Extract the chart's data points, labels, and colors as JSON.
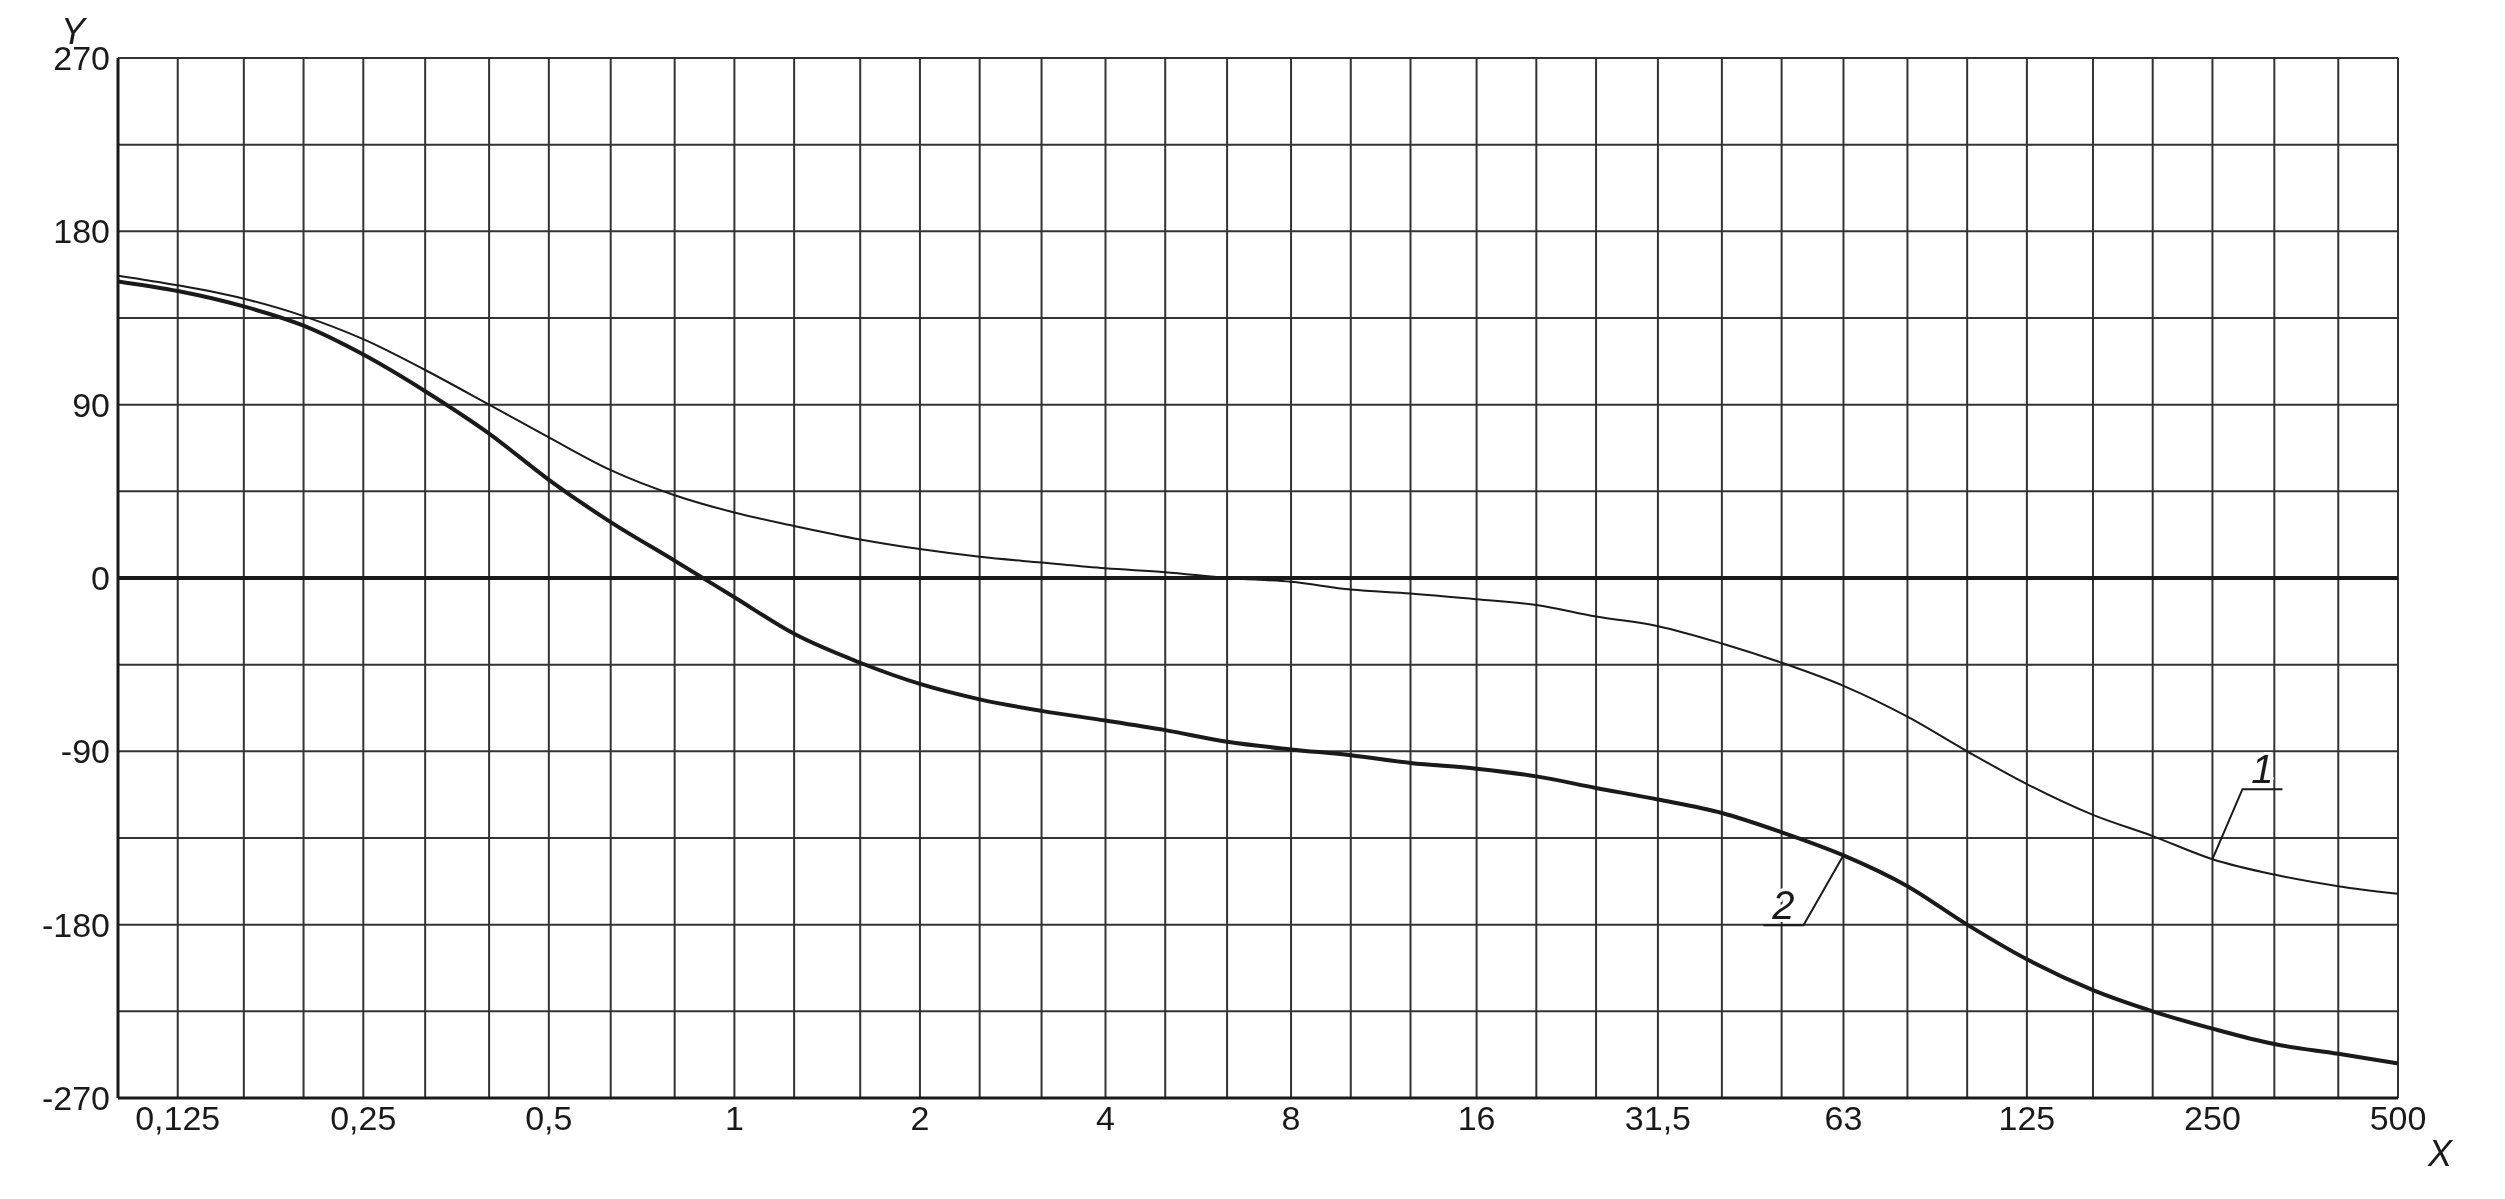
{
  "chart_data": {
    "type": "line",
    "xlabel": "X",
    "ylabel": "Y",
    "x": [
      0.1,
      0.125,
      0.16,
      0.2,
      0.25,
      0.315,
      0.4,
      0.5,
      0.63,
      0.8,
      1,
      1.25,
      1.6,
      2,
      2.5,
      3.15,
      4,
      5,
      6.3,
      8,
      10,
      12.5,
      16,
      20,
      25,
      31.5,
      40,
      50,
      63,
      80,
      100,
      125,
      160,
      200,
      250,
      315,
      400,
      500
    ],
    "series": [
      {
        "name": "1",
        "color": "#1a1a1a",
        "values": [
          157,
          152,
          145,
          136,
          124,
          108,
          90,
          73,
          56,
          43,
          34,
          27,
          20,
          15,
          11,
          8,
          5,
          3,
          0,
          -2,
          -6,
          -8,
          -11,
          -14,
          -20,
          -25,
          -34,
          -44,
          -56,
          -72,
          -90,
          -107,
          -123,
          -134,
          -146,
          -154,
          -160,
          -164
        ]
      },
      {
        "name": "2",
        "color": "#1a1a1a",
        "values": [
          154,
          149,
          141,
          131,
          116,
          97,
          75,
          51,
          29,
          9,
          -10,
          -29,
          -44,
          -55,
          -63,
          -69,
          -74,
          -79,
          -85,
          -89,
          -92,
          -96,
          -99,
          -103,
          -109,
          -115,
          -122,
          -132,
          -144,
          -160,
          -180,
          -198,
          -214,
          -225,
          -234,
          -242,
          -247,
          -252
        ]
      }
    ],
    "log": "x",
    "xlim": [
      0.1,
      500
    ],
    "xticks": [
      {
        "value": 0.125,
        "label": "0,125"
      },
      {
        "value": 0.16,
        "label": null
      },
      {
        "value": 0.2,
        "label": null
      },
      {
        "value": 0.25,
        "label": "0,25"
      },
      {
        "value": 0.315,
        "label": null
      },
      {
        "value": 0.4,
        "label": null
      },
      {
        "value": 0.5,
        "label": "0,5"
      },
      {
        "value": 0.63,
        "label": null
      },
      {
        "value": 0.8,
        "label": null
      },
      1,
      {
        "value": 1.25,
        "label": null
      },
      {
        "value": 1.6,
        "label": null
      },
      2,
      {
        "value": 2.5,
        "label": null
      },
      {
        "value": 3.15,
        "label": null
      },
      4,
      {
        "value": 5,
        "label": null
      },
      {
        "value": 6.3,
        "label": null
      },
      8,
      {
        "value": 10,
        "label": null
      },
      {
        "value": 12.5,
        "label": null
      },
      16,
      {
        "value": 20,
        "label": null
      },
      {
        "value": 25,
        "label": null
      },
      {
        "value": 31.5,
        "label": "31,5"
      },
      {
        "value": 40,
        "label": null
      },
      {
        "value": 50,
        "label": null
      },
      63,
      {
        "value": 80,
        "label": null
      },
      {
        "value": 100,
        "label": null
      },
      125,
      {
        "value": 160,
        "label": null
      },
      {
        "value": 200,
        "label": null
      },
      250,
      {
        "value": 315,
        "label": null
      },
      {
        "value": 400,
        "label": null
      },
      500
    ],
    "ylim": [
      -270,
      270
    ],
    "yticks": [
      -270,
      {
        "value": -225,
        "label": null
      },
      -180,
      {
        "value": -135,
        "label": null
      },
      -90,
      {
        "value": -45,
        "label": null
      },
      0,
      {
        "value": 45,
        "label": null
      },
      90,
      {
        "value": 135,
        "label": null
      },
      180,
      {
        "value": 225,
        "label": null
      },
      270
    ],
    "grid": true,
    "marker": "none",
    "line_style": "solid",
    "ref_lines": [
      {
        "axis": "y",
        "value": 0,
        "color": "#1a1a1a"
      }
    ]
  }
}
